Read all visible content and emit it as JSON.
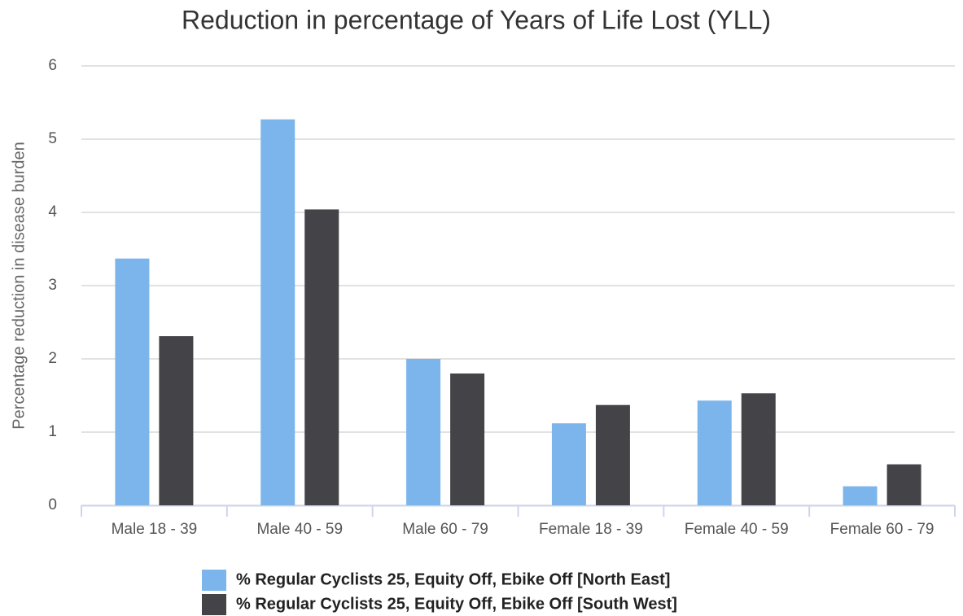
{
  "chart_data": {
    "type": "bar",
    "title": "Reduction in percentage of Years of Life Lost (YLL)",
    "y_label": "Percentage reduction in disease burden",
    "categories": [
      "Male 18 - 39",
      "Male 40 - 59",
      "Male 60 - 79",
      "Female 18 - 39",
      "Female 40 - 59",
      "Female 60 - 79"
    ],
    "series": [
      {
        "name": "% Regular Cyclists 25, Equity Off, Ebike Off [North East]",
        "color": "#7cb5ec",
        "values": [
          3.37,
          5.27,
          2.0,
          1.12,
          1.43,
          0.26
        ]
      },
      {
        "name": "% Regular Cyclists 25, Equity Off, Ebike Off [South West]",
        "color": "#434348",
        "values": [
          2.31,
          4.04,
          1.8,
          1.37,
          1.53,
          0.56
        ]
      }
    ],
    "ylim": [
      0,
      6
    ],
    "yticks": [
      0,
      1,
      2,
      3,
      4,
      5,
      6
    ],
    "grid": true,
    "legend": "bottom"
  }
}
